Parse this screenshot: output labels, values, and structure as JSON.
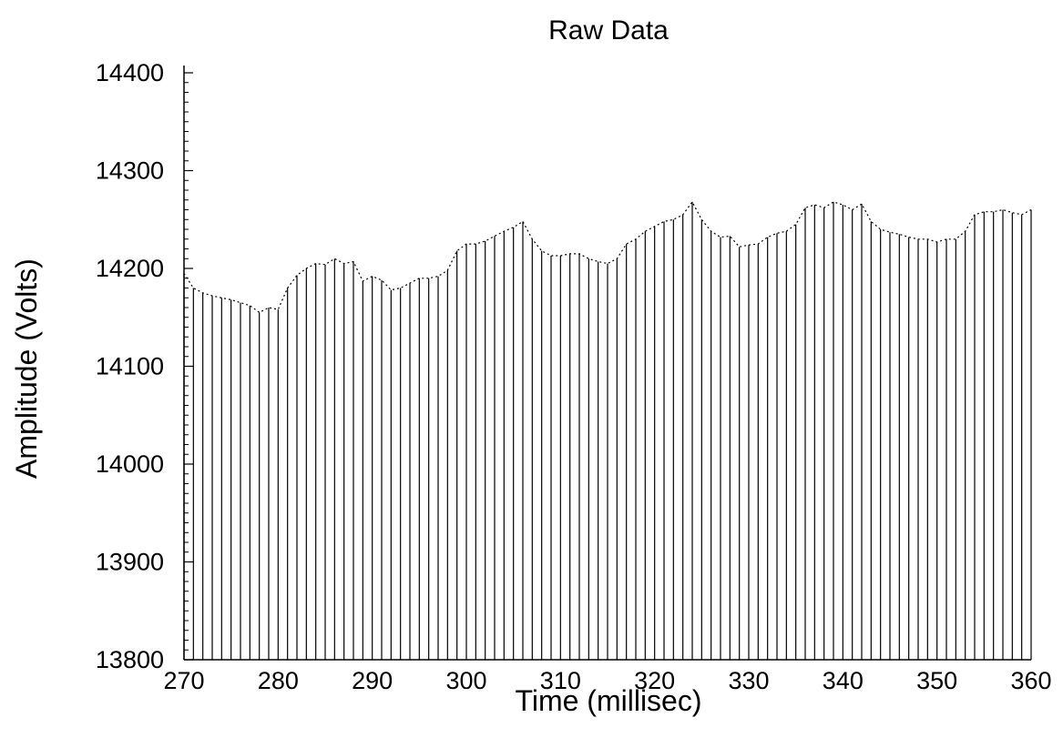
{
  "chart_data": {
    "type": "bar",
    "title": "Raw Data",
    "xlabel": "Time (millisec)",
    "ylabel": "Amplitude (Volts)",
    "xlim": [
      270,
      360
    ],
    "ylim": [
      13800,
      14400
    ],
    "x_ticks": [
      "270",
      "280",
      "290",
      "300",
      "310",
      "320",
      "330",
      "340",
      "350",
      "360"
    ],
    "y_ticks": [
      "13800",
      "13900",
      "14000",
      "14100",
      "14200",
      "14300",
      "14400"
    ],
    "grid": false,
    "style": "stem",
    "series": [
      {
        "x": [
          270,
          271,
          272,
          273,
          274,
          275,
          276,
          277,
          278,
          279,
          280,
          281,
          282,
          283,
          284,
          285,
          286,
          287,
          288,
          289,
          290,
          291,
          292,
          293,
          294,
          295,
          296,
          297,
          298,
          299,
          300,
          301,
          302,
          303,
          304,
          305,
          306,
          307,
          308,
          309,
          310,
          311,
          312,
          313,
          314,
          315,
          316,
          317,
          318,
          319,
          320,
          321,
          322,
          323,
          324,
          325,
          326,
          327,
          328,
          329,
          330,
          331,
          332,
          333,
          334,
          335,
          336,
          337,
          338,
          339,
          340,
          341,
          342,
          343,
          344,
          345,
          346,
          347,
          348,
          349,
          350,
          351,
          352,
          353,
          354,
          355,
          356,
          357,
          358,
          359,
          360
        ],
        "values": [
          14195,
          14180,
          14175,
          14172,
          14170,
          14168,
          14165,
          14162,
          14155,
          14160,
          14158,
          14180,
          14193,
          14200,
          14205,
          14204,
          14210,
          14205,
          14207,
          14187,
          14192,
          14188,
          14178,
          14180,
          14185,
          14190,
          14190,
          14192,
          14198,
          14218,
          14225,
          14225,
          14228,
          14233,
          14238,
          14242,
          14248,
          14230,
          14218,
          14213,
          14213,
          14215,
          14215,
          14210,
          14207,
          14205,
          14210,
          14225,
          14230,
          14238,
          14243,
          14248,
          14250,
          14255,
          14268,
          14250,
          14238,
          14232,
          14233,
          14222,
          14224,
          14225,
          14232,
          14236,
          14238,
          14245,
          14262,
          14265,
          14262,
          14268,
          14265,
          14260,
          14266,
          14248,
          14240,
          14237,
          14235,
          14232,
          14230,
          14230,
          14227,
          14230,
          14230,
          14238,
          14255,
          14258,
          14258,
          14260,
          14257,
          14255,
          14260
        ]
      }
    ]
  }
}
